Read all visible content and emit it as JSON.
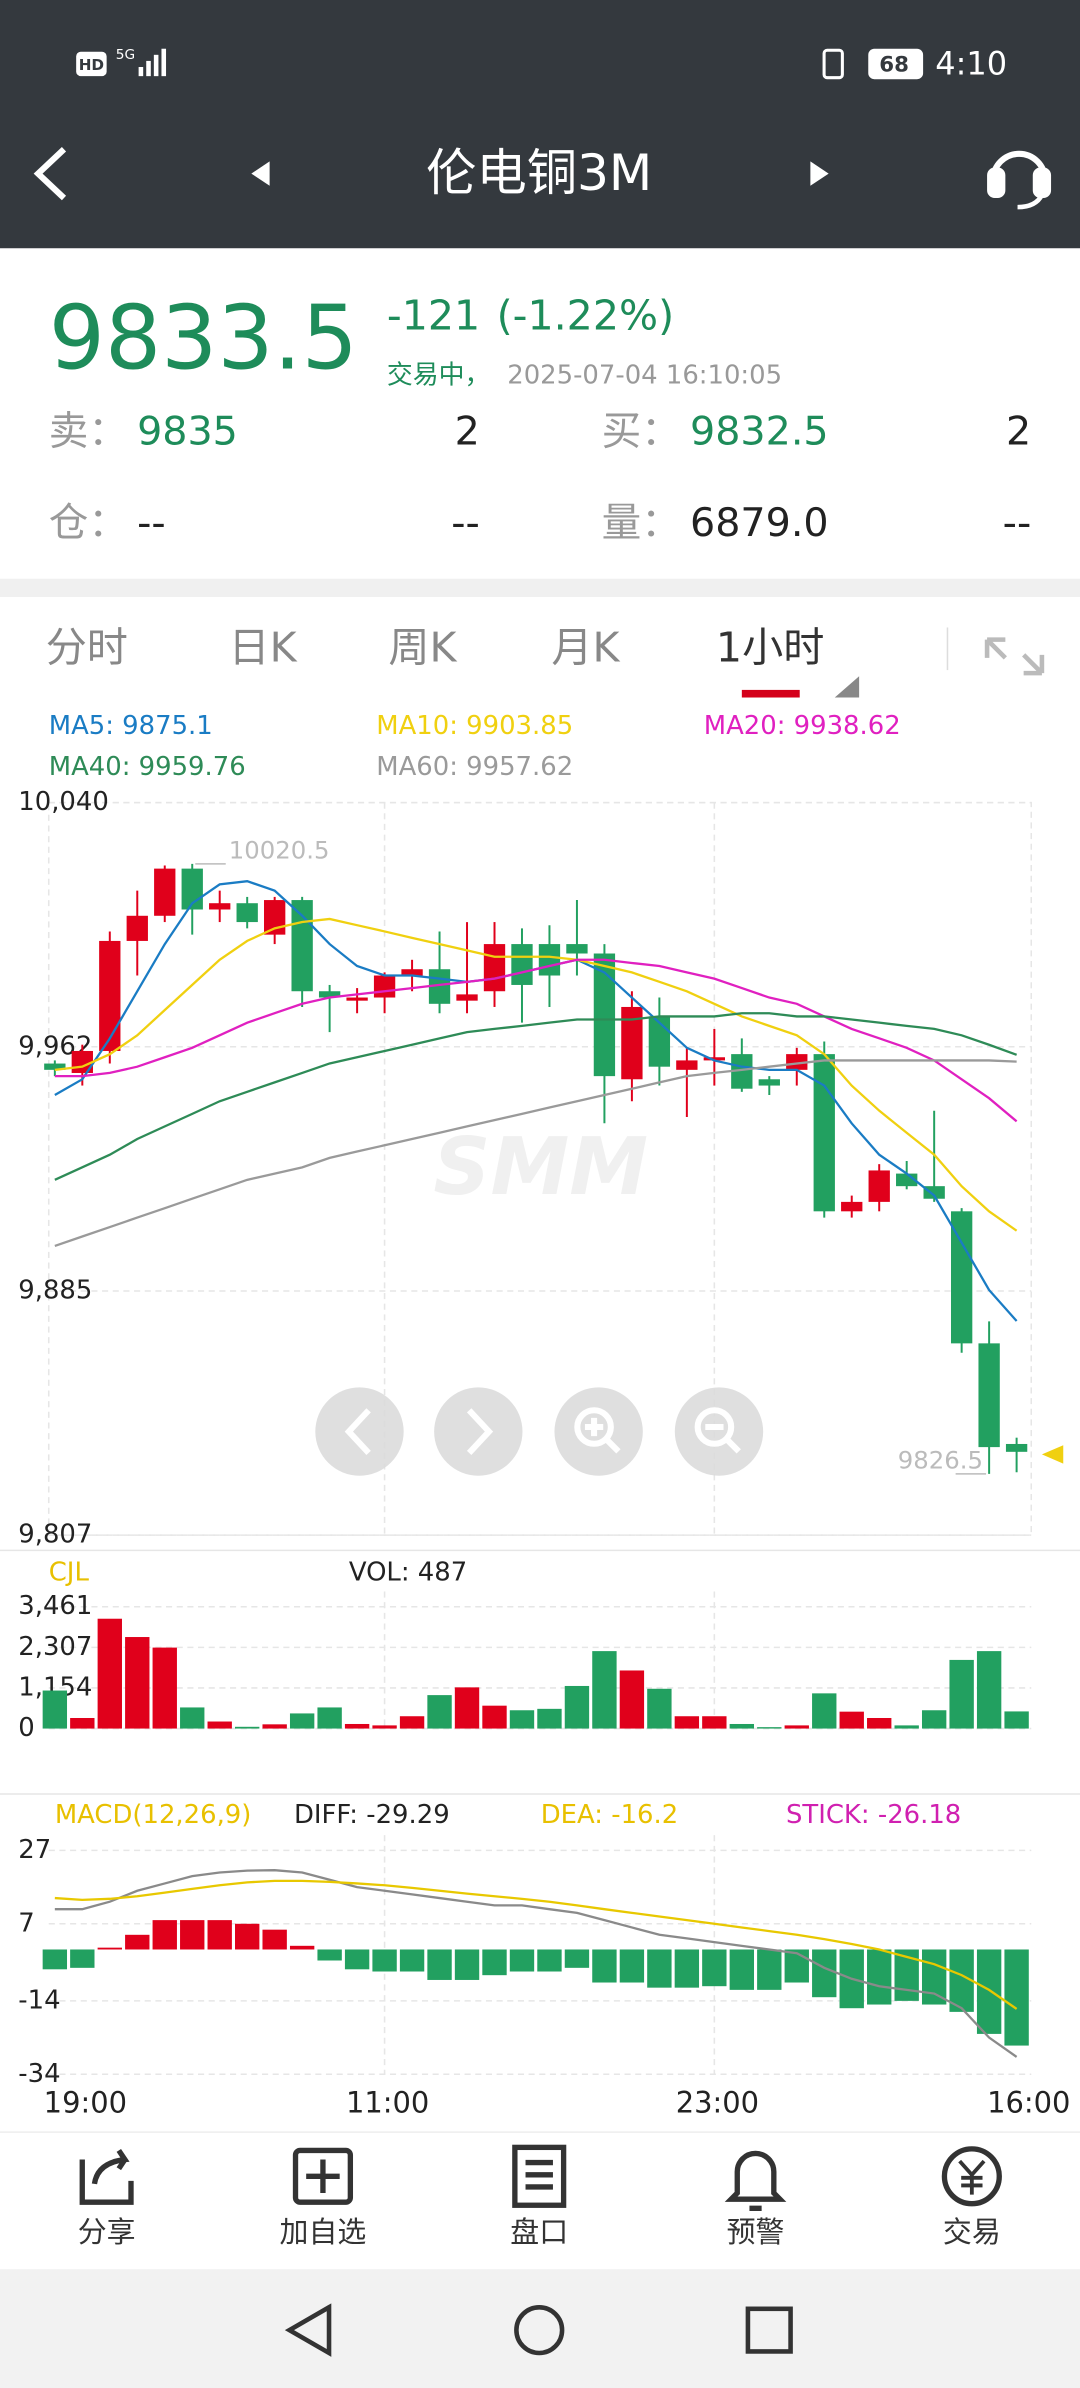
{
  "status_bar": {
    "hd": "HD",
    "network": "5G",
    "battery": "68",
    "time": "4:10"
  },
  "header": {
    "title": "伦电铜3M"
  },
  "quote": {
    "price": "9833.5",
    "change": "-121",
    "change_pct": "(-1.22%)",
    "status": "交易中，",
    "timestamp": "2025-07-04 16:10:05",
    "rows": [
      [
        "卖：",
        "9835",
        "2",
        "买：",
        "9832.5",
        "2"
      ],
      [
        "仓：",
        "--",
        "--",
        "量：",
        "6879.0",
        "--"
      ]
    ]
  },
  "tabs": {
    "items": [
      "分时",
      "日K",
      "周K",
      "月K",
      "1小时"
    ],
    "active": 4
  },
  "toolbar": [
    "分享",
    "加自选",
    "盘口",
    "预警",
    "交易"
  ],
  "chart_data": [
    {
      "type": "candlestick",
      "up_color": "#e0001b",
      "down_color": "#22a060",
      "categories": [
        null,
        "19:00",
        null,
        null,
        null,
        null,
        null,
        null,
        null,
        null,
        null,
        null,
        "11:00",
        null,
        null,
        null,
        null,
        null,
        null,
        null,
        null,
        null,
        null,
        null,
        "23:00",
        null,
        null,
        null,
        null,
        null,
        null,
        null,
        null,
        null,
        null,
        "16:00"
      ],
      "open": [
        9957,
        9954,
        9961,
        9996,
        10004,
        10019,
        10006,
        10008,
        9998,
        10009,
        9980,
        9977,
        9978,
        9985,
        9987,
        9977,
        9980,
        9995,
        9995,
        9995,
        9992,
        9952,
        9972,
        9955,
        9958,
        9960,
        9952,
        9955,
        9960,
        9910,
        9913,
        9922,
        9918,
        9910,
        9868,
        9836
      ],
      "high": [
        9958,
        9963,
        9999,
        10012,
        10020,
        10020.5,
        10012,
        10010,
        10010,
        10010,
        9982,
        9981,
        9986,
        9990,
        9999,
        10002,
        10002,
        10000,
        10001,
        10009,
        9995,
        9980,
        9978,
        9962,
        9968,
        9965,
        9953,
        9962,
        9964,
        9915,
        9925,
        9926,
        9942,
        9911,
        9875,
        9838
      ],
      "low": [
        9953,
        9950,
        9957,
        9985,
        10002,
        9998,
        10002,
        10000,
        9995,
        9975,
        9967,
        9973,
        9973,
        9980,
        9973,
        9973,
        9975,
        9970,
        9975,
        9985,
        9938,
        9945,
        9950,
        9940,
        9950,
        9948,
        9947,
        9950,
        9908,
        9908,
        9910,
        9917,
        9913,
        9865,
        9826.5,
        9827
      ],
      "close": [
        9955,
        9961,
        9996,
        10004,
        10019,
        10006,
        10008,
        10002,
        10009,
        9980,
        9978,
        9978,
        9985,
        9987,
        9976,
        9979,
        9995,
        9982,
        9985,
        9992,
        9953,
        9975,
        9956,
        9958,
        9959,
        9949,
        9950,
        9960,
        9910,
        9913,
        9923,
        9918,
        9914,
        9868,
        9835,
        9833.5
      ],
      "ylim": [
        9807,
        10040
      ],
      "yticks": [
        {
          "value": 10040,
          "label": "10,040"
        },
        {
          "value": 9962.33,
          "label": "9,962"
        },
        {
          "value": 9884.67,
          "label": "9,885"
        },
        {
          "value": 9807,
          "label": "9,807"
        }
      ],
      "grid": true,
      "high_label": {
        "value": 10020.5,
        "index": 5
      },
      "low_label": {
        "value": 9826.5,
        "index": 34
      },
      "watermark": "SMM",
      "series": [
        {
          "name": "MA5",
          "label": "MA5: 9875.1",
          "color": "#1a7cc4",
          "values": [
            9947,
            9952,
            9965,
            9980,
            9995,
            10008,
            10014,
            10015,
            10012,
            10004,
            9995,
            9988,
            9985,
            9985,
            9984,
            9983,
            9984,
            9986,
            9988,
            9990,
            9986,
            9978,
            9970,
            9962,
            9958,
            9956,
            9955,
            9955,
            9950,
            9938,
            9928,
            9922,
            9915,
            9900,
            9885,
            9875.1
          ]
        },
        {
          "name": "MA10",
          "label": "MA10: 9903.85",
          "color": "#f0d010",
          "values": [
            9955,
            9956,
            9960,
            9966,
            9974,
            9982,
            9990,
            9996,
            10000,
            10002,
            10003,
            10001,
            9999,
            9997,
            9995,
            9993,
            9991,
            9991,
            9991,
            9990,
            9988,
            9986,
            9983,
            9980,
            9976,
            9972,
            9969,
            9966,
            9960,
            9950,
            9942,
            9935,
            9928,
            9918,
            9910,
            9903.85
          ]
        },
        {
          "name": "MA20",
          "label": "MA20: 9938.62",
          "color": "#e020c0",
          "values": [
            9953,
            9953,
            9954,
            9956,
            9959,
            9962,
            9966,
            9970,
            9973,
            9976,
            9978,
            9979,
            9980,
            9981,
            9982,
            9983,
            9984,
            9986,
            9988,
            9990,
            9990,
            9989,
            9988,
            9986,
            9984,
            9981,
            9978,
            9976,
            9972,
            9968,
            9965,
            9962,
            9958,
            9952,
            9946,
            9938.62
          ]
        },
        {
          "name": "MA40",
          "label": "MA40: 9959.76",
          "color": "#2e8b57",
          "values": [
            9920,
            9924,
            9928,
            9933,
            9937,
            9941,
            9945,
            9948,
            9951,
            9954,
            9957,
            9959,
            9961,
            9963,
            9965,
            9967,
            9968,
            9969,
            9970,
            9971,
            9971,
            9971,
            9972,
            9972,
            9972,
            9973,
            9973,
            9972,
            9972,
            9971,
            9970,
            9969,
            9968,
            9966,
            9963,
            9959.76
          ]
        },
        {
          "name": "MA60",
          "label": "MA60: 9957.62",
          "color": "#9a9a9a",
          "values": [
            9899,
            9902,
            9905,
            9908,
            9911,
            9914,
            9917,
            9920,
            9922,
            9924,
            9927,
            9929,
            9931,
            9933,
            9935,
            9937,
            9939,
            9941,
            9943,
            9945,
            9947,
            9949,
            9951,
            9953,
            9954,
            9955,
            9956,
            9957,
            9958,
            9958,
            9958,
            9958,
            9958,
            9958,
            9958,
            9957.62
          ]
        }
      ]
    },
    {
      "type": "bar",
      "title": "CJL",
      "label": "VOL: 487",
      "title_color": "#e8c000",
      "values": [
        1080,
        300,
        3120,
        2600,
        2300,
        600,
        200,
        50,
        120,
        430,
        600,
        130,
        90,
        350,
        950,
        1170,
        650,
        520,
        560,
        1210,
        2200,
        1650,
        1130,
        350,
        350,
        130,
        40,
        90,
        1000,
        480,
        300,
        90,
        520,
        1950,
        2200,
        487
      ],
      "ylim": [
        0,
        3461
      ],
      "yticks": [
        0,
        {
          "value": 1154,
          "label": "1,154"
        },
        {
          "value": 2307,
          "label": "2,307"
        },
        {
          "value": 3461,
          "label": "3,461"
        }
      ]
    },
    {
      "type": "macd",
      "title": "MACD(12,26,9)",
      "title_color": "#e8c000",
      "values": [
        -5.4,
        -5,
        0.5,
        4,
        8,
        8,
        8,
        7,
        5.4,
        1,
        -3,
        -5.4,
        -6,
        -6,
        -8.3,
        -8.3,
        -7,
        -6,
        -6,
        -5,
        -9,
        -9,
        -10.4,
        -10.4,
        -10,
        -11,
        -11,
        -9,
        -13,
        -16,
        -15,
        -14,
        -15,
        -17,
        -23,
        -26.18
      ],
      "stick_label": "STICK: -26.18",
      "stick_color": "#d020b0",
      "ylim": [
        -34,
        27
      ],
      "yticks": [
        27,
        7,
        -14,
        -34
      ],
      "series": [
        {
          "name": "DIFF",
          "label": "DIFF: -29.29",
          "color": "#8a8a8a",
          "text_color": "#222222",
          "values": [
            11,
            11,
            13,
            16,
            18,
            20,
            21,
            21.5,
            21.6,
            21,
            19,
            17,
            16,
            15,
            14,
            13,
            12,
            12,
            11,
            10,
            8,
            6,
            4,
            3,
            2,
            1,
            0,
            -1,
            -5,
            -8,
            -10,
            -11,
            -12,
            -16,
            -24,
            -29.29
          ]
        },
        {
          "name": "DEA",
          "label": "DEA: -16.2",
          "color": "#e8c800",
          "text_color": "#e8c000",
          "values": [
            14,
            13.5,
            13.8,
            14.5,
            15.5,
            16.5,
            17.5,
            18.3,
            18.7,
            18.7,
            18.4,
            18,
            17.5,
            16.8,
            16,
            15.2,
            14.5,
            13.8,
            13,
            12,
            11,
            10,
            9,
            8,
            7,
            6,
            5,
            4,
            2.8,
            1.5,
            0,
            -2,
            -4,
            -7,
            -11,
            -16.2
          ]
        }
      ]
    }
  ]
}
